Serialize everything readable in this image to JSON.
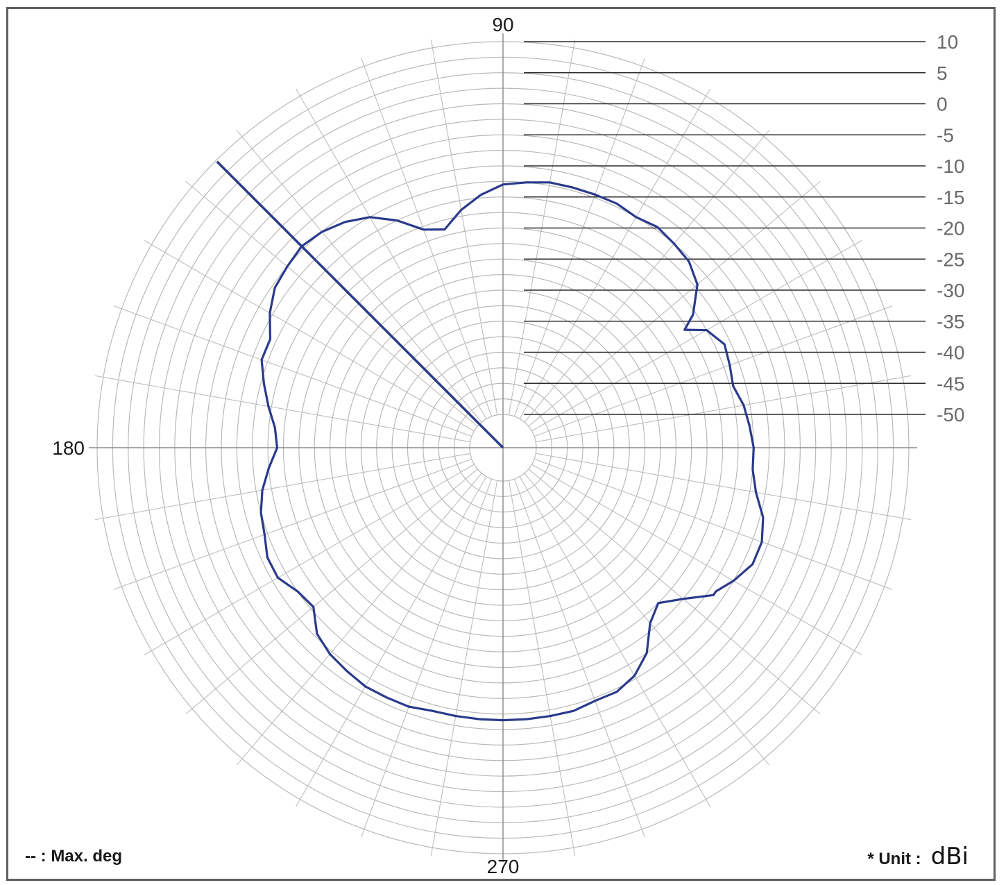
{
  "chart_data": {
    "type": "polar",
    "angular_unit": "deg",
    "angle_labels": [
      "90",
      "180",
      "270"
    ],
    "radial_ticks": [
      "10",
      "5",
      "0",
      "-5",
      "-10",
      "-15",
      "-20",
      "-25",
      "-30",
      "-35",
      "-40",
      "-45",
      "-50"
    ],
    "rlim": [
      -50,
      10
    ],
    "grid": true,
    "legend": {
      "marker": "-- : Max. deg",
      "unit_label": "* Unit :",
      "unit_value": "dBi"
    },
    "max_direction_deg": 135,
    "series": [
      {
        "color": "#2a3a8c",
        "theta_deg": [
          0,
          5,
          10,
          15,
          20,
          25,
          30,
          33,
          35,
          40,
          45,
          50,
          55,
          60,
          65,
          70,
          75,
          80,
          85,
          90,
          95,
          100,
          105,
          110,
          115,
          120,
          125,
          130,
          135,
          140,
          145,
          150,
          155,
          160,
          165,
          170,
          175,
          180,
          185,
          190,
          195,
          200,
          205,
          210,
          215,
          220,
          225,
          230,
          235,
          240,
          245,
          250,
          255,
          260,
          265,
          270,
          275,
          280,
          285,
          290,
          295,
          300,
          305,
          310,
          315,
          320,
          325,
          326,
          330,
          335,
          340,
          345,
          350,
          355
        ],
        "r_db": [
          -15,
          -15.5,
          -16,
          -17,
          -16.5,
          -16,
          -17.5,
          -20.5,
          -18,
          -14.5,
          -13,
          -12.5,
          -12,
          -12.5,
          -12,
          -12,
          -12,
          -12,
          -12.5,
          -13,
          -14.5,
          -16.5,
          -19,
          -18,
          -15,
          -12.5,
          -11,
          -10,
          -9.5,
          -10,
          -10.5,
          -12,
          -14,
          -14,
          -15.5,
          -17,
          -18.5,
          -19,
          -17.5,
          -16,
          -15,
          -14.5,
          -13.5,
          -13.5,
          -15,
          -15.5,
          -13,
          -12,
          -11.5,
          -11,
          -11,
          -11,
          -11.5,
          -11.5,
          -11.5,
          -11.5,
          -11.5,
          -11.5,
          -11.5,
          -12,
          -12,
          -13,
          -15,
          -18.5,
          -20,
          -17.5,
          -14,
          -14,
          -12.5,
          -11,
          -11,
          -12,
          -14,
          -15
        ]
      }
    ]
  }
}
